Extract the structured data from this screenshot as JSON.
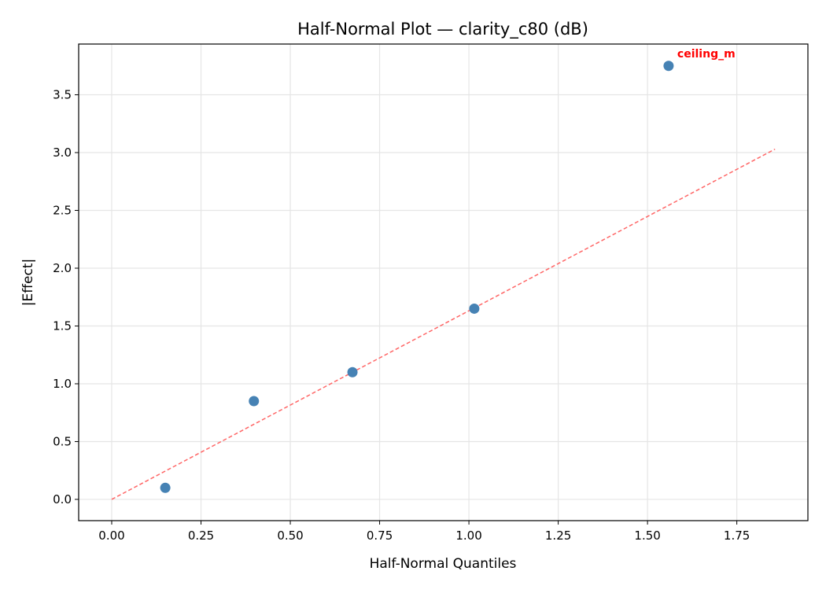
{
  "chart_data": {
    "type": "scatter",
    "title": "Half-Normal Plot — clarity_c80 (dB)",
    "xlabel": "Half-Normal Quantiles",
    "ylabel": "|Effect|",
    "xlim": [
      -0.0925,
      1.949
    ],
    "ylim": [
      -0.184,
      3.939
    ],
    "xticks": [
      0.0,
      0.25,
      0.5,
      0.75,
      1.0,
      1.25,
      1.5,
      1.75
    ],
    "xtick_labels": [
      "0.00",
      "0.25",
      "0.50",
      "0.75",
      "1.00",
      "1.25",
      "1.50",
      "1.75"
    ],
    "yticks": [
      0.0,
      0.5,
      1.0,
      1.5,
      2.0,
      2.5,
      3.0,
      3.5
    ],
    "ytick_labels": [
      "0.0",
      "0.5",
      "1.0",
      "1.5",
      "2.0",
      "2.5",
      "3.0",
      "3.5"
    ],
    "grid": true,
    "points": {
      "x": [
        0.15,
        0.398,
        0.674,
        1.015,
        1.559
      ],
      "y": [
        0.1,
        0.85,
        1.1,
        1.65,
        3.75
      ],
      "color": "#4682b4"
    },
    "reference_line": {
      "x": [
        0.0,
        1.857
      ],
      "y": [
        0.0,
        3.03
      ],
      "color": "#ff6666",
      "style": "dashed"
    },
    "annotations": [
      {
        "text": "ceiling_m",
        "point_index": 4,
        "color": "#ff0000"
      }
    ]
  }
}
